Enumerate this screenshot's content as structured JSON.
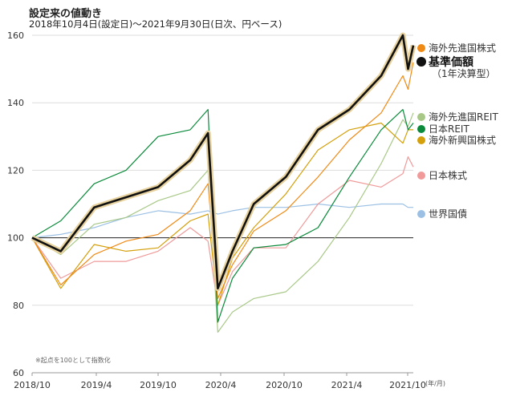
{
  "header": {
    "title": "設定来の値動き",
    "subtitle": "2018年10月4日(設定日)～2021年9月30日(日次、円ベース)"
  },
  "colors": {
    "fund": "#111111",
    "fund_glow": "#e8d3a0",
    "dev_equity": "#f08a16",
    "dev_reit": "#a8c888",
    "jp_reit": "#0a8a3a",
    "em_equity": "#d4a00c",
    "jp_equity": "#f09a9a",
    "world_bond": "#9cc0e4",
    "baseline": "#222222",
    "grid": "#dddddd"
  },
  "chart_data": {
    "type": "line",
    "title": "設定来の値動き",
    "subtitle": "2018年10月4日(設定日)～2021年9月30日(日次、円ベース)",
    "x_tick_labels": [
      "2018/10",
      "2019/4",
      "2019/10",
      "2020/4",
      "2020/10",
      "2021/4",
      "2021/10"
    ],
    "x_unit_label": "(年/月)",
    "y_tick_labels": [
      "60",
      "80",
      "100",
      "120",
      "140",
      "160"
    ],
    "ylim": [
      60,
      160
    ],
    "baseline": 100,
    "grid": true,
    "legend_position": "right",
    "note": "※起点を100として指数化",
    "x": [
      "2018-10-04",
      "2018-12-25",
      "2019-03-31",
      "2019-06-30",
      "2019-09-30",
      "2019-12-31",
      "2020-02-20",
      "2020-03-19",
      "2020-04-30",
      "2020-06-30",
      "2020-09-30",
      "2020-12-31",
      "2021-03-31",
      "2021-06-30",
      "2021-08-31",
      "2021-09-15",
      "2021-09-30"
    ],
    "series": [
      {
        "key": "fund",
        "name": "基準価額",
        "sub_label": "（1年決算型）",
        "values": [
          100,
          96,
          109,
          112,
          115,
          123,
          131,
          85,
          96,
          110,
          118,
          132,
          138,
          148,
          160,
          150,
          157
        ]
      },
      {
        "key": "dev_equity",
        "name": "海外先進国株式",
        "values": [
          100,
          86,
          95,
          99,
          101,
          108,
          116,
          82,
          92,
          102,
          108,
          118,
          129,
          137,
          148,
          144,
          152
        ]
      },
      {
        "key": "dev_reit",
        "name": "海外先進国REIT",
        "values": [
          100,
          95,
          104,
          106,
          111,
          114,
          120,
          72,
          78,
          82,
          84,
          93,
          106,
          122,
          135,
          133,
          137
        ]
      },
      {
        "key": "jp_reit",
        "name": "日本REIT",
        "values": [
          100,
          105,
          116,
          120,
          130,
          132,
          138,
          75,
          88,
          97,
          98,
          103,
          118,
          132,
          138,
          132,
          134
        ]
      },
      {
        "key": "em_equity",
        "name": "海外新興国株式",
        "values": [
          100,
          85,
          98,
          96,
          97,
          105,
          107,
          80,
          94,
          103,
          113,
          126,
          132,
          134,
          128,
          132,
          132
        ]
      },
      {
        "key": "jp_equity",
        "name": "日本株式",
        "values": [
          100,
          88,
          93,
          93,
          96,
          103,
          99,
          80,
          90,
          97,
          97,
          110,
          117,
          115,
          119,
          124,
          121
        ]
      },
      {
        "key": "world_bond",
        "name": "世界国債",
        "values": [
          100,
          101,
          103,
          106,
          108,
          107,
          108,
          107,
          108,
          109,
          109,
          110,
          109,
          110,
          110,
          109,
          109
        ]
      }
    ]
  }
}
